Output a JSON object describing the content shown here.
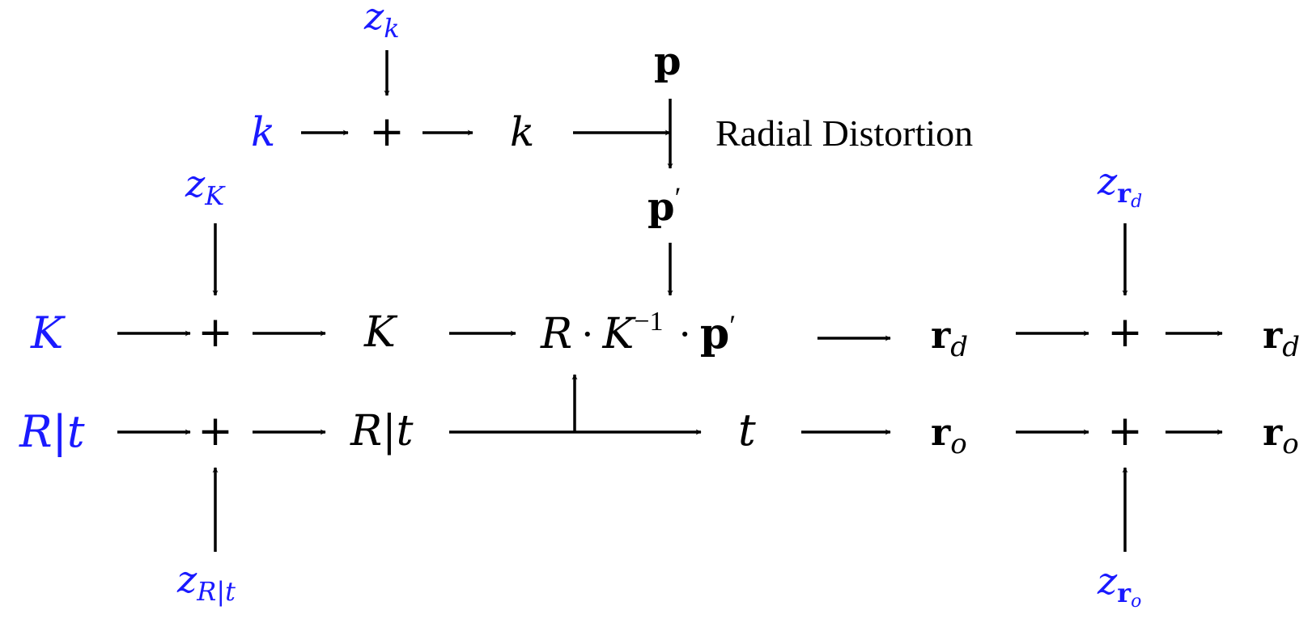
{
  "colors": {
    "input": "#1a1aff",
    "ink": "#000000"
  },
  "inputs": {
    "k": "k",
    "K": "K",
    "Rt": {
      "R": "R",
      "bar": "|",
      "t": "t"
    }
  },
  "noise": {
    "z_k": {
      "base": "z",
      "sub": "k"
    },
    "z_K": {
      "base": "z",
      "sub": "K"
    },
    "z_Rt": {
      "base": "z",
      "sub": "R|t"
    },
    "z_rd": {
      "base": "z",
      "sub": "r",
      "subsub": "d"
    },
    "z_ro": {
      "base": "z",
      "sub": "r",
      "subsub": "o"
    }
  },
  "operators": {
    "plus": "+"
  },
  "nodes": {
    "k": "k",
    "K": "K",
    "Rt": "R|t",
    "p": "p",
    "p_prime": {
      "base": "p",
      "prime": "′"
    },
    "radial_label": "Radial Distortion",
    "projection": {
      "R": "R",
      "dot1": "·",
      "K": "K",
      "exp": "−1",
      "dot2": "·",
      "p": "p",
      "prime": "′"
    },
    "t": "t",
    "r_d": {
      "base": "r",
      "sub": "d"
    },
    "r_o": {
      "base": "r",
      "sub": "o"
    },
    "r_d_out": {
      "base": "r",
      "sub": "d"
    },
    "r_o_out": {
      "base": "r",
      "sub": "o"
    }
  }
}
